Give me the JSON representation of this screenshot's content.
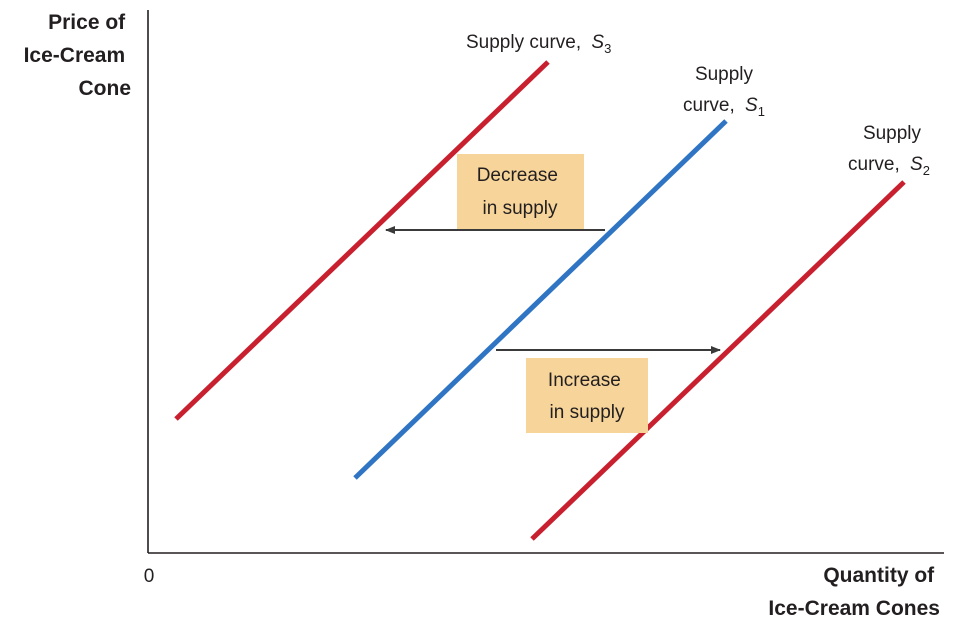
{
  "axes": {
    "y_title": [
      "Price of",
      "Ice-Cream",
      "Cone"
    ],
    "x_title": [
      "Quantity of",
      "Ice-Cream Cones"
    ],
    "origin": "0"
  },
  "curves": [
    {
      "id": "s3",
      "label_lines": [
        "Supply curve,"
      ],
      "symbol": "S",
      "subscript": "3",
      "color": "#c8202e"
    },
    {
      "id": "s1",
      "label_lines": [
        "Supply",
        "curve,"
      ],
      "symbol": "S",
      "subscript": "1",
      "color": "#2f75c4"
    },
    {
      "id": "s2",
      "label_lines": [
        "Supply",
        "curve,"
      ],
      "symbol": "S",
      "subscript": "2",
      "color": "#c8202e"
    }
  ],
  "shifts": {
    "decrease": {
      "lines": [
        "Decrease",
        "in supply"
      ]
    },
    "increase": {
      "lines": [
        "Increase",
        "in supply"
      ]
    },
    "box_color": "#f7d59a"
  }
}
